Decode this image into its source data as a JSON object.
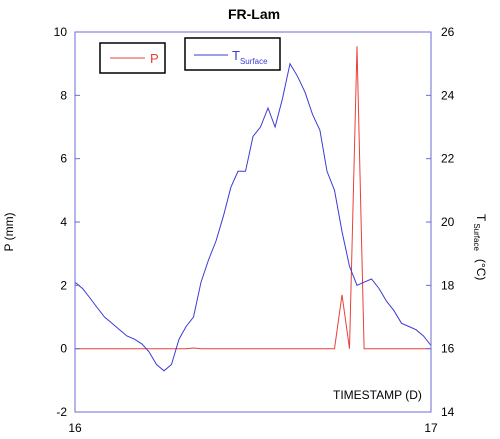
{
  "chart_data": {
    "type": "line",
    "title": "FR-Lam",
    "annotation": "TIMESTAMP (D)",
    "xlim": [
      16,
      17
    ],
    "x_ticks": [
      "16",
      "17"
    ],
    "y_left": {
      "label": "P (mm)",
      "lim": [
        -2,
        10
      ],
      "ticks": [
        "-2",
        "0",
        "2",
        "4",
        "6",
        "8",
        "10"
      ]
    },
    "y_right": {
      "label_main": "T",
      "label_sub": "Surface",
      "label_unit": "(°C)",
      "lim": [
        14,
        26
      ],
      "ticks": [
        "14",
        "16",
        "18",
        "20",
        "22",
        "24",
        "26"
      ]
    },
    "legend": {
      "position": "top-left",
      "items": [
        {
          "label": "P",
          "sub": "",
          "color": "#e8403a"
        },
        {
          "label": "T",
          "sub": "Surface",
          "color": "#3b3bd4"
        }
      ]
    },
    "series": [
      {
        "name": "P",
        "axis": "left",
        "color": "#e8403a",
        "x": [
          16.0,
          16.292,
          16.312,
          16.333,
          16.354,
          16.729,
          16.75,
          16.771,
          16.792,
          16.812,
          16.833,
          17.0
        ],
        "y": [
          0.0,
          0.0,
          0.0,
          0.02,
          0.0,
          0.0,
          1.7,
          0.0,
          9.55,
          0.0,
          0.0,
          0.0
        ]
      },
      {
        "name": "T Surface",
        "axis": "right",
        "color": "#3b3bd4",
        "x": [
          16.0,
          16.021,
          16.042,
          16.062,
          16.083,
          16.104,
          16.125,
          16.146,
          16.167,
          16.188,
          16.208,
          16.229,
          16.25,
          16.271,
          16.292,
          16.312,
          16.333,
          16.354,
          16.375,
          16.396,
          16.417,
          16.438,
          16.458,
          16.479,
          16.5,
          16.521,
          16.542,
          16.562,
          16.583,
          16.604,
          16.625,
          16.646,
          16.667,
          16.688,
          16.708,
          16.729,
          16.75,
          16.771,
          16.792,
          16.812,
          16.833,
          16.854,
          16.875,
          16.896,
          16.917,
          16.938,
          16.958,
          16.979,
          17.0
        ],
        "y": [
          18.1,
          17.9,
          17.6,
          17.3,
          17.0,
          16.8,
          16.6,
          16.4,
          16.3,
          16.15,
          15.9,
          15.5,
          15.3,
          15.5,
          16.3,
          16.7,
          17.0,
          18.1,
          18.8,
          19.4,
          20.2,
          21.1,
          21.6,
          21.6,
          22.7,
          23.0,
          23.6,
          23.0,
          23.9,
          25.0,
          24.6,
          24.1,
          23.4,
          22.9,
          21.6,
          21.0,
          19.7,
          18.6,
          18.0,
          18.1,
          18.2,
          17.9,
          17.5,
          17.2,
          16.8,
          16.7,
          16.6,
          16.4,
          16.1
        ]
      }
    ]
  }
}
